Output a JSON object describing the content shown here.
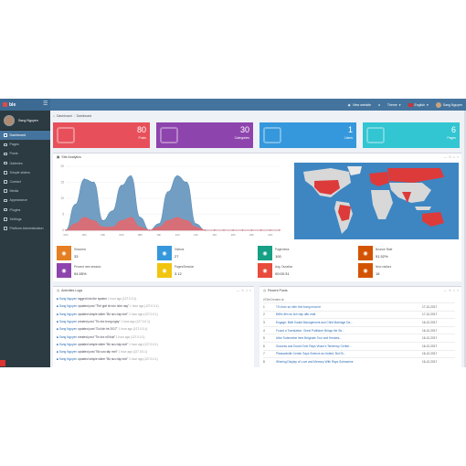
{
  "app": {
    "brand": "ble"
  },
  "topbar": {
    "view_website": "View website",
    "theme": "Theme",
    "language": "English",
    "user": "Sang Nguyen"
  },
  "sidebar": {
    "user_name": "Sang Nguyen",
    "items": [
      {
        "label": "Dashboard",
        "icon": "home-icon"
      },
      {
        "label": "Pages",
        "icon": "book-icon"
      },
      {
        "label": "Posts",
        "icon": "edit-icon"
      },
      {
        "label": "Galleries",
        "icon": "camera-icon"
      },
      {
        "label": "Simple sliders",
        "icon": "images-icon"
      },
      {
        "label": "Contact",
        "icon": "envelope-icon"
      },
      {
        "label": "Media",
        "icon": "folder-icon"
      },
      {
        "label": "Appearance",
        "icon": "paint-brush-icon"
      },
      {
        "label": "Plugins",
        "icon": "plug-icon"
      },
      {
        "label": "Settings",
        "icon": "cogs-icon"
      },
      {
        "label": "Platform Administration",
        "icon": "user-shield-icon"
      }
    ]
  },
  "breadcrumb": {
    "home": "Dashboard",
    "current": "Dashboard"
  },
  "stats": [
    {
      "value": "80",
      "label": "Posts",
      "color": "#e7505a"
    },
    {
      "value": "30",
      "label": "Categories",
      "color": "#8e44ad"
    },
    {
      "value": "1",
      "label": "Users",
      "color": "#3598dc"
    },
    {
      "value": "6",
      "label": "Pages",
      "color": "#32c5d2"
    }
  ],
  "analytics": {
    "title": "Site Analytics",
    "kpis": [
      {
        "label": "Sessions",
        "value": "33",
        "color": "#e67e22"
      },
      {
        "label": "Visitors",
        "value": "27",
        "color": "#3598dc"
      },
      {
        "label": "Pageviews",
        "value": "100",
        "color": "#16a085"
      },
      {
        "label": "Bounce Rate",
        "value": "51.52%",
        "color": "#d35400"
      },
      {
        "label": "Percent new session",
        "value": "54.55%",
        "color": "#8e44ad"
      },
      {
        "label": "Pages/Session",
        "value": "3.12",
        "color": "#f1c40f"
      },
      {
        "label": "Avg. Duration",
        "value": "00:00:31",
        "color": "#e74c3c"
      },
      {
        "label": "New visitors",
        "value": "18",
        "color": "#d35400"
      }
    ]
  },
  "chart_data": {
    "type": "area",
    "title": "",
    "xlabel": "",
    "ylabel": "",
    "ylim": [
      0,
      20
    ],
    "yticks": [
      0,
      5,
      10,
      15,
      20
    ],
    "x": [
      "00h",
      "01h",
      "02h",
      "03h",
      "04h",
      "05h",
      "06h",
      "07h",
      "08h",
      "09h",
      "10h",
      "11h",
      "12h",
      "13h",
      "14h",
      "15h",
      "16h",
      "17h",
      "18h",
      "19h",
      "20h",
      "21h",
      "22h",
      "23h"
    ],
    "series": [
      {
        "name": "",
        "color": "#5b8db8",
        "values": [
          0,
          8,
          16,
          15,
          3,
          6,
          14,
          17,
          4,
          0,
          2,
          12,
          17,
          15,
          2,
          0,
          0,
          0,
          0,
          0,
          0,
          0,
          0,
          0
        ]
      },
      {
        "name": "",
        "color": "#e8666a",
        "values": [
          0,
          2,
          4,
          3,
          1,
          1,
          3,
          4,
          1,
          0,
          1,
          3,
          4,
          3,
          1,
          0,
          0,
          0,
          0,
          0,
          0,
          0,
          0,
          0
        ]
      }
    ]
  },
  "activity": {
    "title": "Activities Logs",
    "rows": [
      {
        "user": "Sang Nguyen",
        "action": "logged into the system",
        "meta": "1 hour ago (127.0.0.1)"
      },
      {
        "user": "Sang Nguyen",
        "action": "updated post \"Thế giới tin tức hôm nay\"",
        "meta": "1 hour ago (127.0.0.1)"
      },
      {
        "user": "Sang Nguyen",
        "action": "updated simple slider \"Bộ sưu tập mới\"",
        "meta": "1 hour ago (127.0.0.1)"
      },
      {
        "user": "Sang Nguyen",
        "action": "created post \"Tin tức trong ngày\"",
        "meta": "1 hour ago (127.0.0.1)"
      },
      {
        "user": "Sang Nguyen",
        "action": "updated post \"Du lịch hè 2017\"",
        "meta": "1 hour ago (127.0.0.1)"
      },
      {
        "user": "Sang Nguyen",
        "action": "created post \"Tin tức nổi bật\"",
        "meta": "1 hour ago (127.0.0.1)"
      },
      {
        "user": "Sang Nguyen",
        "action": "updated simple slider \"Bộ sưu tập mới\"",
        "meta": "1 hour ago (127.0.0.1)"
      },
      {
        "user": "Sang Nguyen",
        "action": "updated post \"Bộ sưu tập mới\"",
        "meta": "1 hour ago (127.0.0.1)"
      },
      {
        "user": "Sang Nguyen",
        "action": "updated simple slider \"Bộ sưu tập mới\"",
        "meta": "1 hour ago (127.0.0.1)"
      }
    ]
  },
  "recent_posts": {
    "title": "Recent Posts",
    "columns": [
      "#",
      "Title",
      "Created at"
    ],
    "rows": [
      {
        "id": "1",
        "title": "Tổ chức sự kiện thời trang mùa hè",
        "date": "17-12-2017"
      },
      {
        "id": "2",
        "title": "Điểm đến du lịch hấp dẫn nhất",
        "date": "17-12-2017"
      },
      {
        "id": "3",
        "title": "Engage: Beth Ewald Management and Child Marriage Da...",
        "date": "16-12-2017"
      },
      {
        "id": "4",
        "title": "Found a Translation: Great Publisher Brings the Str...",
        "date": "16-12-2017"
      },
      {
        "id": "5",
        "title": "Alive Submarine Item Belgrade Tour and Hessles...",
        "date": "16-12-2017"
      },
      {
        "id": "6",
        "title": "Success and Doubt Over Rays Vision's Tendency Center...",
        "date": "16-12-2017"
      },
      {
        "id": "7",
        "title": "Pleasantville Center Says Science as Invited, But St...",
        "date": "16-12-2017"
      },
      {
        "id": "8",
        "title": "Winning Display of Love and Memory With Rays Submarine",
        "date": "16-12-2017"
      }
    ]
  }
}
